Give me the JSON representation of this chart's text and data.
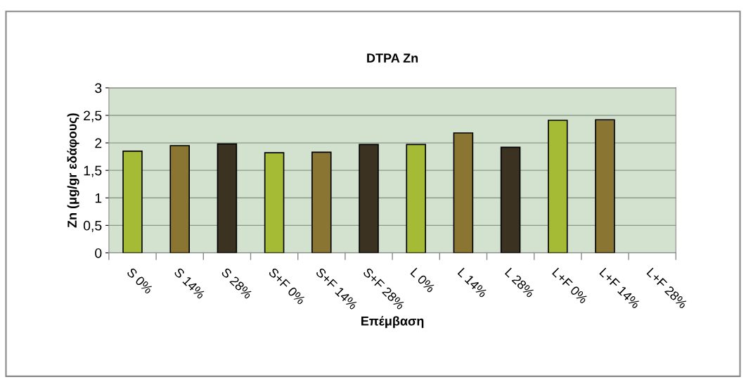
{
  "chart_data": {
    "type": "bar",
    "title": "DTPA Zn",
    "xlabel": "Επέμβαση",
    "ylabel": "Zn (μg/gr εδάφους)",
    "categories": [
      "S 0%",
      "S 14%",
      "S 28%",
      "S+F 0%",
      "S+F 14%",
      "S+F 28%",
      "L 0%",
      "L 14%",
      "L 28%",
      "L+F 0%",
      "L+F 14%",
      "L+F 28%"
    ],
    "values": [
      1.85,
      1.95,
      1.98,
      1.82,
      1.83,
      1.97,
      1.97,
      2.18,
      1.92,
      2.41,
      2.42,
      null
    ],
    "colors": [
      "#a6bb35",
      "#8b7532",
      "#3b3222",
      "#a6bb35",
      "#8b7532",
      "#3b3222",
      "#a6bb35",
      "#8b7532",
      "#3b3222",
      "#a6bb35",
      "#8b7532",
      "#3b3222"
    ],
    "ylim": [
      0,
      3
    ],
    "yticks": [
      0,
      {
        "value": 0.5,
        "label": "0,5"
      },
      1,
      {
        "value": 1.5,
        "label": "1,5"
      },
      2,
      {
        "value": 2.5,
        "label": "2,5"
      },
      3
    ],
    "grid": "y",
    "legend": false
  }
}
